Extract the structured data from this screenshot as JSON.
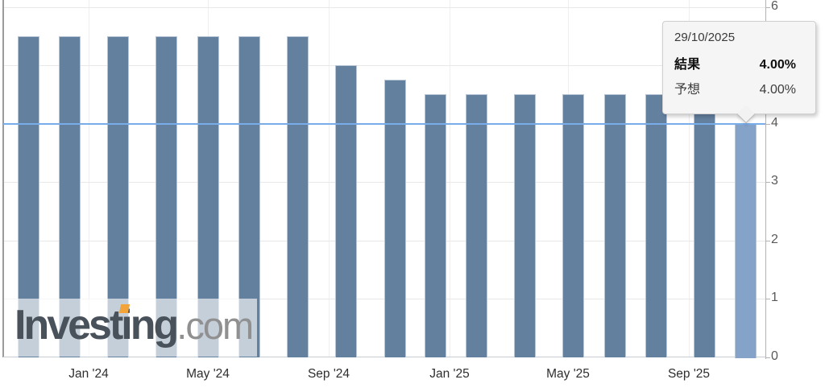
{
  "watermark": {
    "brand_pre": "Invest",
    "brand_i": "i",
    "brand_post": "ng",
    "suffix": ".com"
  },
  "tooltip": {
    "date": "29/10/2025",
    "rows": [
      {
        "label": "結果",
        "value": "4.00%"
      },
      {
        "label": "予想",
        "value": "4.00%"
      }
    ]
  },
  "chart_data": {
    "type": "bar",
    "title": "",
    "xlabel": "",
    "ylabel": "",
    "x": [
      "2023-11-01",
      "2023-12-13",
      "2024-01-31",
      "2024-03-20",
      "2024-05-01",
      "2024-06-12",
      "2024-07-31",
      "2024-09-18",
      "2024-11-07",
      "2024-12-18",
      "2025-01-29",
      "2025-03-19",
      "2025-05-07",
      "2025-06-18",
      "2025-07-30",
      "2025-09-17",
      "2025-10-29"
    ],
    "values": [
      5.5,
      5.5,
      5.5,
      5.5,
      5.5,
      5.5,
      5.5,
      5.0,
      4.75,
      4.5,
      4.5,
      4.5,
      4.5,
      4.5,
      4.5,
      4.25,
      4.0
    ],
    "highlighted_index": 16,
    "reference_line": 4.0,
    "ylim": [
      0,
      6
    ],
    "yticks": [
      0,
      1,
      2,
      3,
      4,
      5,
      6
    ],
    "xticks": [
      {
        "date": "2024-01-01",
        "label": "Jan '24"
      },
      {
        "date": "2024-05-01",
        "label": "May '24"
      },
      {
        "date": "2024-09-01",
        "label": "Sep '24"
      },
      {
        "date": "2025-01-01",
        "label": "Jan '25"
      },
      {
        "date": "2025-05-01",
        "label": "May '25"
      },
      {
        "date": "2025-09-01",
        "label": "Sep '25"
      }
    ],
    "legend": [],
    "grid": true,
    "colors": {
      "bar": "#64809f",
      "bar_border": "#b9c6d6",
      "bar_highlight": "#85a2c8",
      "reference_line": "#79ade9",
      "grid_h": "#e8e8e8",
      "grid_v": "#efefef",
      "axis_left": "#9b9b9b",
      "axis_bottom": "#c8cdd4",
      "axis_right": "#b3b3b3"
    }
  }
}
